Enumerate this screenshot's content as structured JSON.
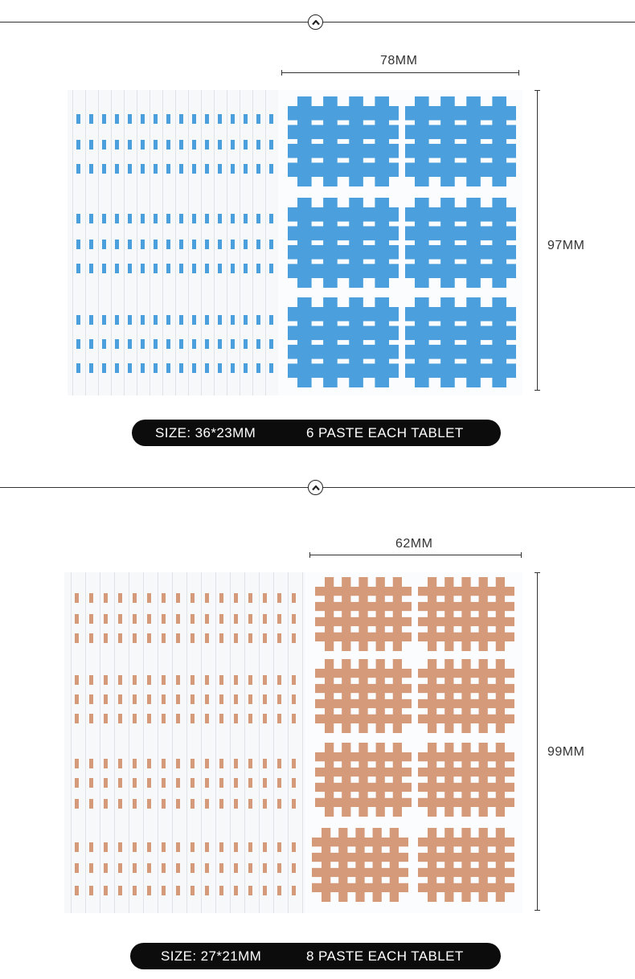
{
  "section1": {
    "width_label": "78MM",
    "height_label": "97MM",
    "size_text": "SIZE: 36*23MM",
    "paste_text": "6 PASTE EACH TABLET",
    "tape_color": "#4a9fdc"
  },
  "section2": {
    "width_label": "62MM",
    "height_label": "99MM",
    "size_text": "SIZE: 27*21MM",
    "paste_text": "8 PASTE EACH TABLET",
    "tape_color": "#d59a79"
  },
  "icons": {
    "scroll_up": "chevron-up-icon"
  }
}
